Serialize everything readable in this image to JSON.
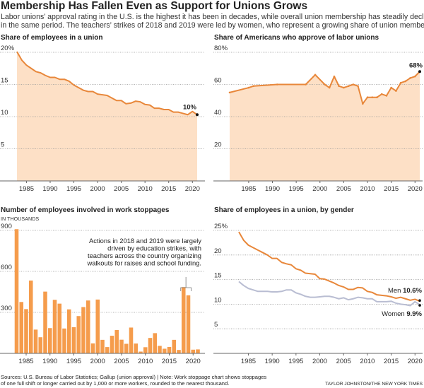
{
  "header": {
    "title": "Membership Has Fallen Even as Support for Unions Grows",
    "subtitle_lines": [
      "Labor unions’ approval rating in the U.S. is the highest it has been in decades, while overall union membership has steadily declined",
      "in the same period. The teachers’ strikes of 2018 and 2019 were led by women, who represent a growing share of union members."
    ]
  },
  "colors": {
    "line": "#e8873a",
    "fill": "#fde0c6",
    "bar": "#f59c4c",
    "women": "#b9bdd2",
    "end_dot": "#111111"
  },
  "chart_data": [
    {
      "type": "area",
      "title": "Share of employees in a union",
      "ylim": [
        0,
        20
      ],
      "yticks": [
        "20%",
        "15",
        "10",
        "5"
      ],
      "ytick_values": [
        20,
        15,
        10,
        5
      ],
      "xticks": [
        "1985",
        "1990",
        "1995",
        "2000",
        "2005",
        "2010",
        "2015",
        "2020"
      ],
      "grid": true,
      "end_label": "10%",
      "x": [
        1983,
        1984,
        1985,
        1986,
        1987,
        1988,
        1989,
        1990,
        1991,
        1992,
        1993,
        1994,
        1995,
        1996,
        1997,
        1998,
        1999,
        2000,
        2001,
        2002,
        2003,
        2004,
        2005,
        2006,
        2007,
        2008,
        2009,
        2010,
        2011,
        2012,
        2013,
        2014,
        2015,
        2016,
        2017,
        2018,
        2019,
        2020,
        2021
      ],
      "values": [
        20.1,
        18.8,
        18.0,
        17.5,
        17.0,
        16.8,
        16.4,
        16.1,
        16.1,
        15.8,
        15.8,
        15.5,
        14.9,
        14.5,
        14.1,
        13.9,
        13.9,
        13.5,
        13.4,
        13.3,
        12.9,
        12.5,
        12.5,
        12.0,
        12.1,
        12.4,
        12.3,
        11.9,
        11.8,
        11.3,
        11.3,
        11.1,
        11.1,
        10.7,
        10.7,
        10.5,
        10.3,
        10.8,
        10.3
      ]
    },
    {
      "type": "area",
      "title": "Share of Americans who approve of labor unions",
      "ylim": [
        0,
        80
      ],
      "yticks": [
        "80%",
        "60",
        "40",
        "20"
      ],
      "ytick_values": [
        80,
        60,
        40,
        20
      ],
      "xticks": [
        "1985",
        "1990",
        "1995",
        "2000",
        "2005",
        "2010",
        "2015",
        "2020"
      ],
      "grid": true,
      "end_label": "68%",
      "x": [
        1981,
        1985,
        1986,
        1991,
        1997,
        1999,
        2001,
        2002,
        2003,
        2004,
        2005,
        2006,
        2007,
        2008,
        2009,
        2010,
        2011,
        2012,
        2013,
        2014,
        2015,
        2016,
        2017,
        2018,
        2019,
        2020,
        2021
      ],
      "values": [
        55,
        58,
        59,
        60,
        60,
        66,
        60,
        58,
        65,
        59,
        58,
        59,
        60,
        59,
        48,
        52,
        52,
        52,
        54,
        53,
        58,
        56,
        61,
        62,
        64,
        65,
        68
      ]
    },
    {
      "type": "bar",
      "title": "Number of employees involved in work stoppages",
      "ylabel": "IN THOUSANDS",
      "ylim": [
        0,
        900
      ],
      "yticks": [
        "900",
        "600",
        "300"
      ],
      "ytick_values": [
        900,
        600,
        300
      ],
      "xticks": [
        "1985",
        "1990",
        "1995",
        "2000",
        "2005",
        "2010",
        "2015",
        "2020"
      ],
      "grid": true,
      "annotation": [
        "Actions in 2018 and 2019 were largely",
        "driven by education strikes, with",
        "teachers across the country organizing",
        "walkouts for raises and school funding."
      ],
      "x": [
        1983,
        1984,
        1985,
        1986,
        1987,
        1988,
        1989,
        1990,
        1991,
        1992,
        1993,
        1994,
        1995,
        1996,
        1997,
        1998,
        1999,
        2000,
        2001,
        2002,
        2003,
        2004,
        2005,
        2006,
        2007,
        2008,
        2009,
        2010,
        2011,
        2012,
        2013,
        2014,
        2015,
        2016,
        2017,
        2018,
        2019,
        2020,
        2021
      ],
      "values": [
        909,
        376,
        324,
        533,
        174,
        118,
        452,
        185,
        392,
        364,
        182,
        322,
        192,
        273,
        339,
        387,
        73,
        394,
        99,
        46,
        129,
        171,
        100,
        70,
        189,
        72,
        13,
        45,
        113,
        148,
        55,
        34,
        47,
        99,
        25,
        485,
        425,
        27,
        29
      ]
    },
    {
      "type": "line",
      "title": "Share of employees in a union, by gender",
      "ylim": [
        0,
        25
      ],
      "yticks": [
        "25%",
        "20",
        "15",
        "10",
        "5"
      ],
      "ytick_values": [
        25,
        20,
        15,
        10,
        5
      ],
      "xticks": [
        "1985",
        "1990",
        "1995",
        "2000",
        "2005",
        "2010",
        "2015",
        "2020"
      ],
      "grid": true,
      "x": [
        1983,
        1984,
        1985,
        1986,
        1987,
        1988,
        1989,
        1990,
        1991,
        1992,
        1993,
        1994,
        1995,
        1996,
        1997,
        1998,
        1999,
        2000,
        2001,
        2002,
        2003,
        2004,
        2005,
        2006,
        2007,
        2008,
        2009,
        2010,
        2011,
        2012,
        2013,
        2014,
        2015,
        2016,
        2017,
        2018,
        2019,
        2020,
        2021
      ],
      "series": [
        {
          "name": "Men",
          "end_label": "10.6%",
          "values": [
            24.7,
            23.0,
            22.0,
            21.5,
            21.0,
            20.5,
            20.0,
            19.3,
            19.3,
            18.5,
            18.2,
            18.0,
            17.2,
            16.9,
            16.3,
            16.2,
            16.1,
            15.2,
            15.1,
            14.7,
            14.3,
            13.8,
            13.5,
            13.0,
            13.0,
            13.4,
            13.3,
            12.6,
            12.4,
            11.9,
            11.8,
            11.7,
            11.5,
            11.2,
            11.4,
            11.1,
            10.8,
            11.0,
            10.6
          ]
        },
        {
          "name": "Women",
          "end_label": "9.9%",
          "values": [
            14.6,
            13.8,
            13.2,
            12.9,
            12.6,
            12.6,
            12.6,
            12.5,
            12.5,
            12.6,
            12.9,
            12.9,
            12.3,
            12.0,
            11.6,
            11.4,
            11.4,
            11.5,
            11.6,
            11.6,
            11.4,
            11.1,
            11.3,
            10.9,
            11.1,
            11.4,
            11.3,
            11.1,
            11.1,
            10.5,
            10.5,
            10.5,
            10.6,
            10.2,
            10.0,
            9.9,
            9.7,
            10.5,
            9.9
          ]
        }
      ]
    }
  ],
  "footer": {
    "source_lines": [
      "Sources: U.S. Bureau of Labor Statistics; Gallup (union approval) | Note: Work stoppage chart shows stoppages",
      "of one full shift or longer carried out by 1,000 or more workers, rounded to the nearest thousand."
    ],
    "credit": "TAYLOR JOHNSTON/THE NEW YORK TIMES"
  }
}
